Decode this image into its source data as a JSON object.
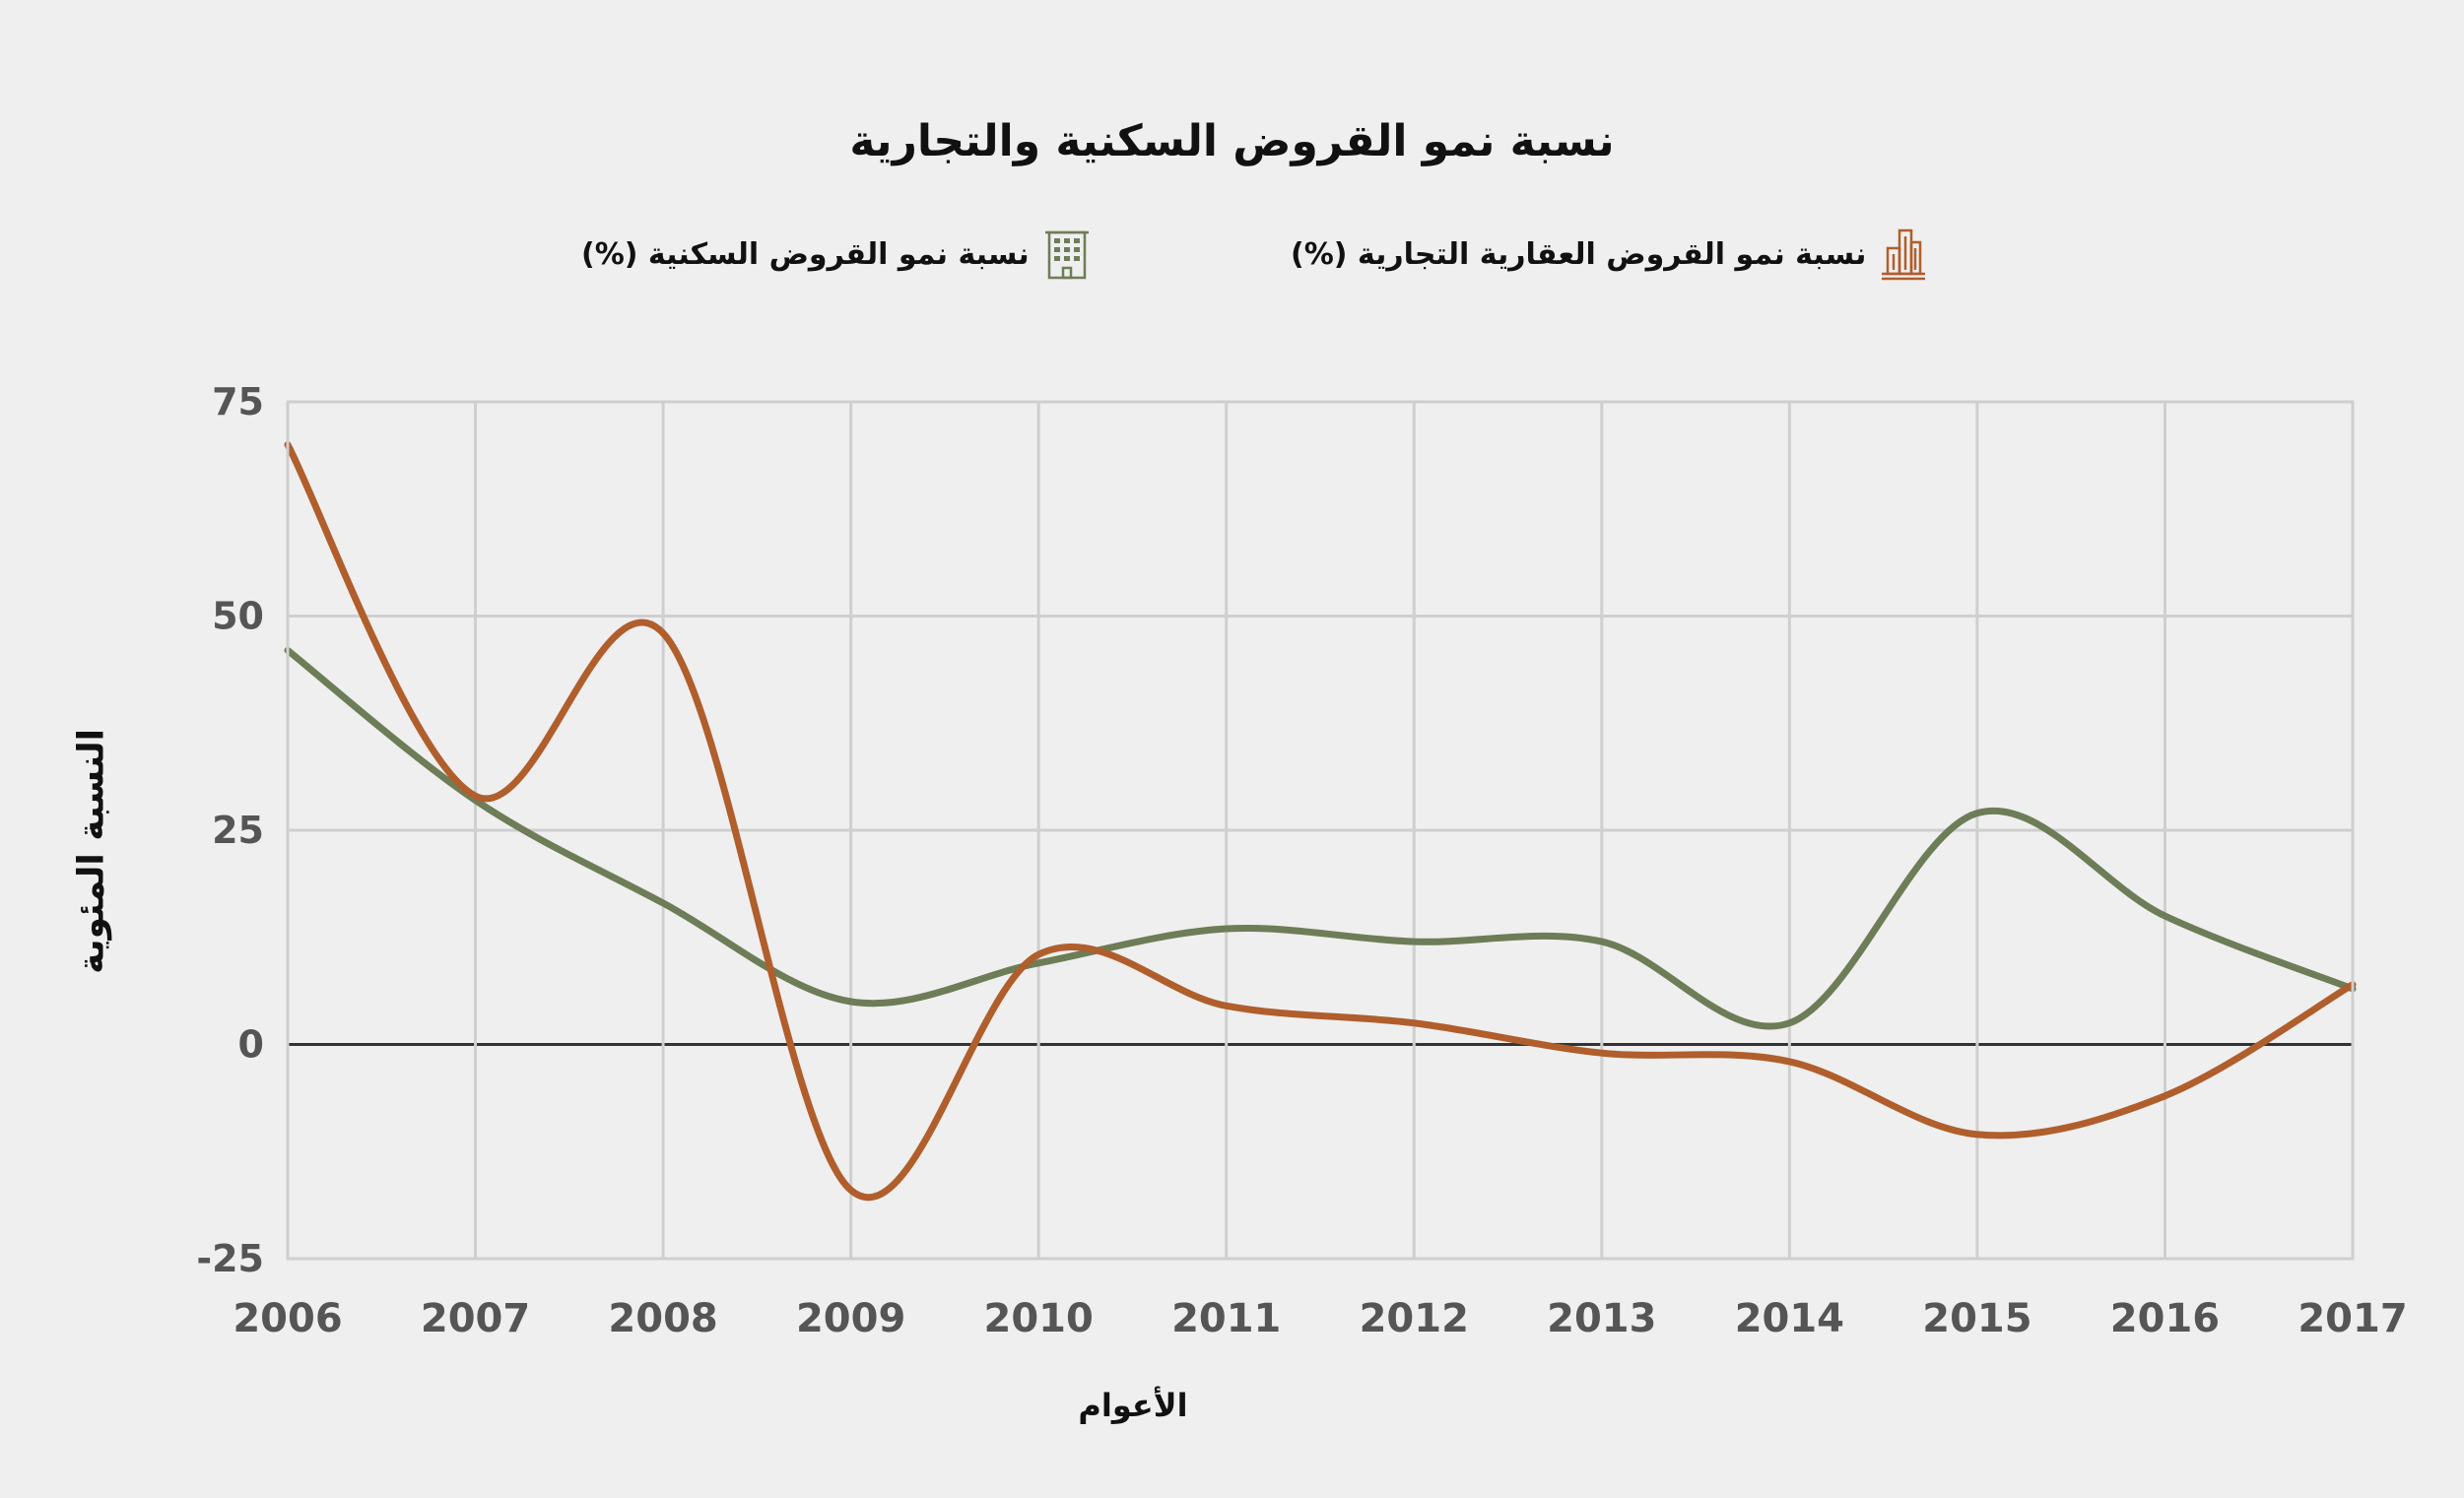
{
  "chart_data": {
    "type": "line",
    "title": "نسبة نمو القروض السكنية والتجارية",
    "xlabel": "الأعوام",
    "ylabel": "النسبة المئوية",
    "x": [
      "2006",
      "2007",
      "2008",
      "2009",
      "2010",
      "2011",
      "2012",
      "2013",
      "2014",
      "2015",
      "2016",
      "2017"
    ],
    "y_ticks": [
      "75",
      "50",
      "25",
      "0",
      "-25"
    ],
    "ylim": [
      -25,
      75
    ],
    "grid": true,
    "legend_position": "top",
    "series": [
      {
        "name": "نسبة نمو القروض العقارية التجارية (%)",
        "color": "#b05e2c",
        "icon": "skyscraper-icon",
        "values": [
          70,
          29,
          48,
          -17,
          10.5,
          4.5,
          2.5,
          -1,
          -2,
          -10.5,
          -6,
          7
        ]
      },
      {
        "name": "نسبة نمو القروض السكنية (%)",
        "color": "#6d7d57",
        "icon": "apartment-building-icon",
        "values": [
          46,
          28.5,
          16.5,
          5,
          9.5,
          13.5,
          12,
          12,
          2.5,
          27,
          15,
          6.5
        ]
      }
    ]
  }
}
